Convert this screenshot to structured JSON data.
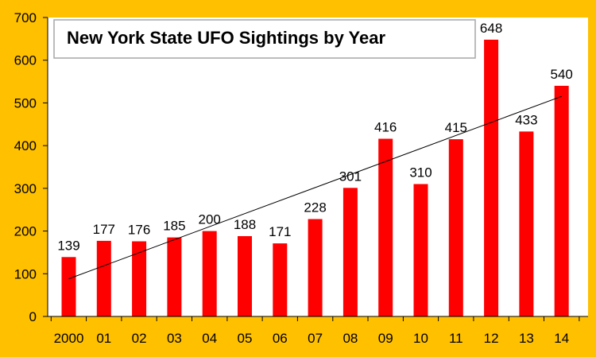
{
  "chart_data": {
    "type": "bar",
    "title": "New York State UFO Sightings by Year",
    "categories": [
      "2000",
      "01",
      "02",
      "03",
      "04",
      "05",
      "06",
      "07",
      "08",
      "09",
      "10",
      "11",
      "12",
      "13",
      "14"
    ],
    "values": [
      139,
      177,
      176,
      185,
      200,
      188,
      171,
      228,
      301,
      416,
      310,
      415,
      648,
      433,
      540
    ],
    "data_labels": [
      "139",
      "177",
      "176",
      "185",
      "200",
      "188",
      "171",
      "228",
      "301",
      "416",
      "310",
      "415",
      "648",
      "433",
      "540"
    ],
    "y_ticks": [
      "0",
      "100",
      "200",
      "300",
      "400",
      "500",
      "600",
      "700"
    ],
    "xlabel": "",
    "ylabel": "",
    "ylim": [
      0,
      700
    ],
    "grid": false,
    "legend": "none",
    "trendline": "linear",
    "colors": {
      "background": "#FFC000",
      "plot_area": "#FFFFFF",
      "bar": "#FF0000",
      "trendline": "#000000",
      "axis": "#000000"
    }
  }
}
